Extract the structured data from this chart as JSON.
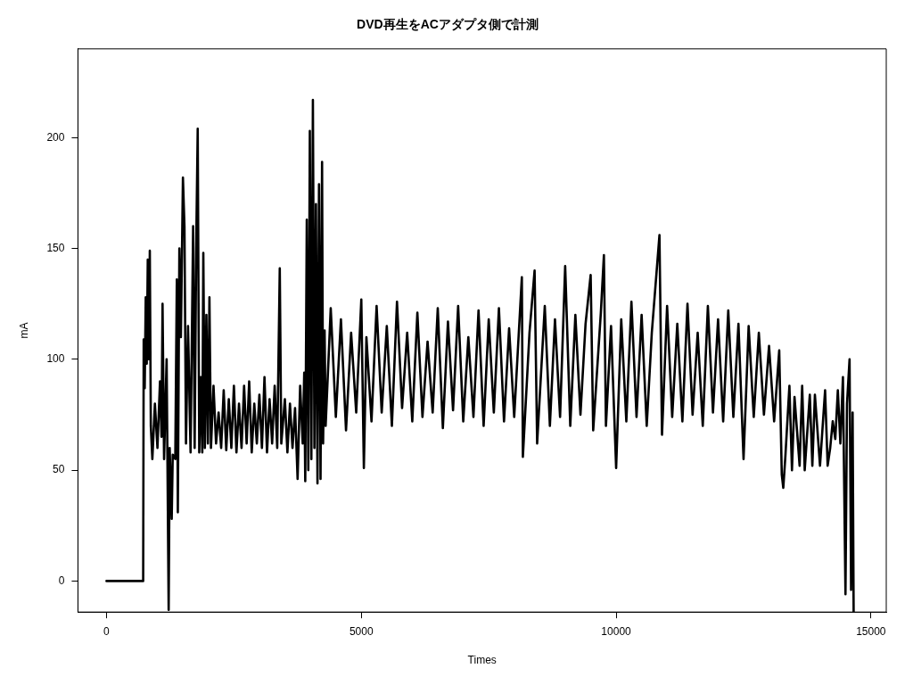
{
  "chart_data": {
    "type": "line",
    "title": "DVD再生をACアダプタ側で計測",
    "xlabel": "Times",
    "ylabel": "mA",
    "xlim": [
      -560,
      15300
    ],
    "xticks": [
      0,
      5000,
      10000,
      15000
    ],
    "ylim": [
      -14,
      240
    ],
    "yticks": [
      0,
      50,
      100,
      150,
      200
    ],
    "marker": "none",
    "line_style": "solid",
    "series": [
      {
        "color": "#000000",
        "x": [
          0,
          720,
          730,
          750,
          770,
          790,
          810,
          830,
          850,
          870,
          900,
          950,
          1000,
          1050,
          1080,
          1100,
          1130,
          1180,
          1220,
          1240,
          1280,
          1300,
          1350,
          1380,
          1400,
          1430,
          1460,
          1500,
          1530,
          1560,
          1600,
          1650,
          1700,
          1730,
          1760,
          1790,
          1820,
          1850,
          1880,
          1900,
          1930,
          1960,
          1990,
          2020,
          2050,
          2100,
          2150,
          2200,
          2250,
          2300,
          2350,
          2400,
          2450,
          2500,
          2550,
          2600,
          2650,
          2700,
          2750,
          2800,
          2850,
          2900,
          2950,
          3000,
          3050,
          3100,
          3150,
          3200,
          3250,
          3300,
          3350,
          3400,
          3430,
          3500,
          3550,
          3600,
          3650,
          3700,
          3750,
          3800,
          3850,
          3880,
          3900,
          3930,
          3960,
          3990,
          4020,
          4050,
          4080,
          4110,
          4140,
          4170,
          4200,
          4230,
          4250,
          4280,
          4300,
          4400,
          4500,
          4600,
          4700,
          4800,
          4900,
          5000,
          5050,
          5100,
          5200,
          5300,
          5400,
          5500,
          5600,
          5700,
          5800,
          5900,
          6000,
          6100,
          6200,
          6300,
          6400,
          6500,
          6600,
          6700,
          6800,
          6900,
          7000,
          7100,
          7200,
          7300,
          7400,
          7500,
          7600,
          7700,
          7800,
          7900,
          8000,
          8150,
          8170,
          8300,
          8400,
          8450,
          8600,
          8700,
          8800,
          8900,
          9000,
          9100,
          9200,
          9300,
          9400,
          9500,
          9550,
          9700,
          9760,
          9800,
          9900,
          10000,
          10100,
          10200,
          10300,
          10400,
          10500,
          10600,
          10700,
          10850,
          10900,
          11000,
          11100,
          11200,
          11300,
          11400,
          11500,
          11600,
          11700,
          11800,
          11900,
          12000,
          12100,
          12200,
          12300,
          12400,
          12500,
          12600,
          12700,
          12800,
          12900,
          13000,
          13100,
          13200,
          13250,
          13280,
          13320,
          13400,
          13450,
          13500,
          13600,
          13650,
          13700,
          13800,
          13850,
          13900,
          14000,
          14100,
          14150,
          14200,
          14250,
          14300,
          14350,
          14400,
          14450,
          14500,
          14530,
          14580,
          14610,
          14640,
          14660
        ],
        "values": [
          0,
          0,
          109,
          87,
          128,
          98,
          145,
          100,
          149,
          70,
          55,
          80,
          60,
          90,
          65,
          125,
          55,
          100,
          -13,
          60,
          28,
          57,
          55,
          136,
          31,
          150,
          110,
          182,
          160,
          62,
          115,
          58,
          160,
          60,
          150,
          204,
          58,
          92,
          58,
          148,
          60,
          120,
          62,
          128,
          60,
          88,
          62,
          76,
          60,
          86,
          59,
          82,
          60,
          88,
          58,
          80,
          60,
          88,
          62,
          90,
          58,
          80,
          62,
          84,
          60,
          92,
          58,
          82,
          62,
          88,
          60,
          141,
          62,
          82,
          58,
          80,
          60,
          78,
          46,
          88,
          62,
          94,
          45,
          163,
          50,
          203,
          55,
          217,
          60,
          170,
          44,
          179,
          46,
          189,
          62,
          113,
          70,
          123,
          74,
          118,
          68,
          112,
          76,
          127,
          51,
          110,
          72,
          124,
          76,
          115,
          70,
          126,
          78,
          112,
          72,
          121,
          74,
          108,
          76,
          123,
          69,
          117,
          77,
          124,
          72,
          110,
          74,
          122,
          70,
          118,
          76,
          123,
          72,
          114,
          74,
          137,
          56,
          112,
          140,
          62,
          124,
          70,
          118,
          74,
          142,
          70,
          120,
          75,
          116,
          138,
          68,
          121,
          147,
          70,
          115,
          51,
          118,
          72,
          126,
          74,
          120,
          70,
          112,
          156,
          66,
          124,
          74,
          116,
          72,
          125,
          75,
          112,
          70,
          124,
          76,
          118,
          72,
          122,
          74,
          116,
          55,
          115,
          74,
          112,
          75,
          106,
          72,
          104,
          48,
          42,
          56,
          88,
          50,
          83,
          52,
          88,
          50,
          84,
          52,
          84,
          52,
          86,
          52,
          60,
          72,
          64,
          86,
          62,
          92,
          -6,
          80,
          100,
          -4,
          76,
          -14
        ]
      }
    ]
  }
}
